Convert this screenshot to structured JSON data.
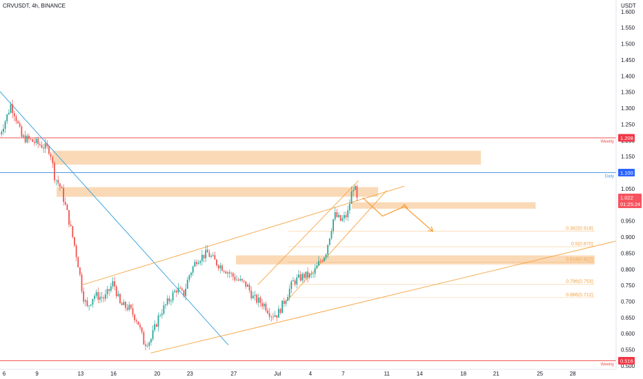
{
  "header": {
    "symbol": "CRVUSDT, 4h, BINANCE"
  },
  "colors": {
    "up": "#26a69a",
    "down": "#ef5350",
    "zone": "#f9cfa5",
    "orange": "#f6a23e",
    "trend_blue": "#2d9cdb",
    "resistance_red": "#ef5350",
    "daily_blue": "#4c9ae0"
  },
  "chart_data": {
    "type": "candlestick",
    "title": "",
    "price_axis": {
      "unit": "USDT",
      "range": [
        0.49,
        1.62
      ],
      "ticks": [
        "1.600",
        "1.550",
        "1.500",
        "1.450",
        "1.400",
        "1.350",
        "1.300",
        "1.250",
        "1.200",
        "1.150",
        "1.100",
        "1.050",
        "1.000",
        "0.950",
        "0.900",
        "0.850",
        "0.800",
        "0.750",
        "0.700",
        "0.650",
        "0.600",
        "0.550",
        "0.500"
      ]
    },
    "time_axis": {
      "ticks": [
        {
          "label": "6",
          "day": 6
        },
        {
          "label": "9",
          "day": 9
        },
        {
          "label": "13",
          "day": 13
        },
        {
          "label": "16",
          "day": 16
        },
        {
          "label": "20",
          "day": 20
        },
        {
          "label": "23",
          "day": 23
        },
        {
          "label": "27",
          "day": 27
        },
        {
          "label": "Jul",
          "day": 31
        },
        {
          "label": "4",
          "day": 34
        },
        {
          "label": "7",
          "day": 37
        },
        {
          "label": "11",
          "day": 41
        },
        {
          "label": "14",
          "day": 44
        },
        {
          "label": "18",
          "day": 48
        },
        {
          "label": "21",
          "day": 51
        },
        {
          "label": "25",
          "day": 55
        },
        {
          "label": "28",
          "day": 58
        }
      ]
    },
    "price_path_keypoints": [
      [
        5.6,
        1.22
      ],
      [
        6.2,
        1.27
      ],
      [
        6.6,
        1.31
      ],
      [
        7.0,
        1.28
      ],
      [
        7.6,
        1.21
      ],
      [
        8.4,
        1.2
      ],
      [
        9.4,
        1.185
      ],
      [
        10.2,
        1.17
      ],
      [
        10.6,
        1.09
      ],
      [
        11.2,
        1.05
      ],
      [
        11.8,
        0.97
      ],
      [
        12.4,
        0.88
      ],
      [
        12.8,
        0.81
      ],
      [
        13.2,
        0.72
      ],
      [
        13.6,
        0.68
      ],
      [
        14.2,
        0.72
      ],
      [
        15.2,
        0.71
      ],
      [
        16.0,
        0.76
      ],
      [
        16.6,
        0.69
      ],
      [
        17.4,
        0.68
      ],
      [
        18.2,
        0.64
      ],
      [
        18.8,
        0.57
      ],
      [
        19.4,
        0.58
      ],
      [
        20.2,
        0.66
      ],
      [
        21.0,
        0.7
      ],
      [
        21.8,
        0.74
      ],
      [
        22.4,
        0.72
      ],
      [
        22.9,
        0.78
      ],
      [
        23.6,
        0.83
      ],
      [
        24.6,
        0.85
      ],
      [
        25.4,
        0.82
      ],
      [
        26.2,
        0.8
      ],
      [
        27.2,
        0.77
      ],
      [
        28.2,
        0.75
      ],
      [
        28.8,
        0.71
      ],
      [
        29.8,
        0.69
      ],
      [
        30.4,
        0.66
      ],
      [
        31.0,
        0.66
      ],
      [
        31.6,
        0.7
      ],
      [
        32.4,
        0.76
      ],
      [
        33.4,
        0.78
      ],
      [
        34.2,
        0.78
      ],
      [
        34.8,
        0.82
      ],
      [
        35.4,
        0.85
      ],
      [
        35.8,
        0.91
      ],
      [
        36.2,
        0.97
      ],
      [
        36.8,
        0.95
      ],
      [
        37.4,
        0.97
      ],
      [
        37.9,
        1.06
      ],
      [
        38.4,
        1.022
      ]
    ],
    "zones": [
      {
        "from": 10.4,
        "to": 49.6,
        "low": 1.125,
        "high": 1.168
      },
      {
        "from": 10.8,
        "to": 40.2,
        "low": 1.025,
        "high": 1.055
      },
      {
        "from": 37.8,
        "to": 54.6,
        "low": 0.988,
        "high": 1.008
      },
      {
        "from": 27.2,
        "to": 60.0,
        "low": 0.815,
        "high": 0.843
      }
    ],
    "horizontal_levels": [
      {
        "price": 1.208,
        "label": "1.208",
        "tag": "Weekly",
        "color": "#ef5350"
      },
      {
        "price": 1.1,
        "label": "1.100",
        "tag": "Daily",
        "color": "#4c9ae0"
      },
      {
        "price": 0.516,
        "label": "0.516",
        "tag": "Weekly",
        "color": "#ef5350"
      }
    ],
    "fib_levels": [
      {
        "price": 0.918,
        "label": "0.382(0.918)"
      },
      {
        "price": 0.87,
        "label": "0.5(0.870)"
      },
      {
        "price": 0.822,
        "label": "0.618(0.822)"
      },
      {
        "price": 0.753,
        "label": "0.786(0.753)"
      },
      {
        "price": 0.712,
        "label": "0.886(0.712)"
      }
    ],
    "current_price": {
      "value": "1.022",
      "countdown": "01:25:24"
    },
    "trend_lines": [
      {
        "kind": "descending",
        "x1": 4.6,
        "y1": 1.39,
        "x2": 26.5,
        "y2": 0.565
      },
      {
        "kind": "channel-lower",
        "x1": 19.4,
        "y1": 0.54,
        "x2": 62.0,
        "y2": 0.888
      },
      {
        "kind": "channel-upper",
        "x1": 13.2,
        "y1": 0.752,
        "x2": 42.6,
        "y2": 1.058
      },
      {
        "kind": "rising-wedge-upper",
        "x1": 29.2,
        "y1": 0.752,
        "x2": 38.4,
        "y2": 1.075
      },
      {
        "kind": "rising-wedge-lower",
        "x1": 31.8,
        "y1": 0.7,
        "x2": 41.0,
        "y2": 1.045
      }
    ],
    "projection_path": [
      [
        38.8,
        1.022
      ],
      [
        40.6,
        0.965
      ],
      [
        42.6,
        0.995
      ],
      [
        45.2,
        0.918
      ]
    ]
  }
}
